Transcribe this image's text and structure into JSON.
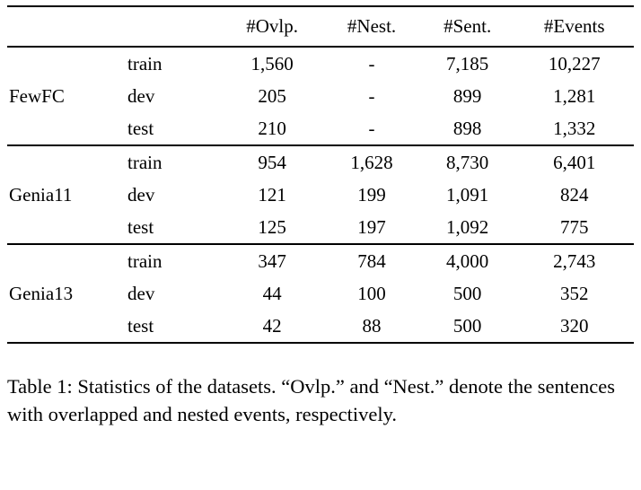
{
  "table": {
    "columns": [
      "#Ovlp.",
      "#Nest.",
      "#Sent.",
      "#Events"
    ],
    "groups": [
      {
        "dataset": "FewFC",
        "rows": [
          {
            "split": "train",
            "values": [
              "1,560",
              "-",
              "7,185",
              "10,227"
            ]
          },
          {
            "split": "dev",
            "values": [
              "205",
              "-",
              "899",
              "1,281"
            ]
          },
          {
            "split": "test",
            "values": [
              "210",
              "-",
              "898",
              "1,332"
            ]
          }
        ]
      },
      {
        "dataset": "Genia11",
        "rows": [
          {
            "split": "train",
            "values": [
              "954",
              "1,628",
              "8,730",
              "6,401"
            ]
          },
          {
            "split": "dev",
            "values": [
              "121",
              "199",
              "1,091",
              "824"
            ]
          },
          {
            "split": "test",
            "values": [
              "125",
              "197",
              "1,092",
              "775"
            ]
          }
        ]
      },
      {
        "dataset": "Genia13",
        "rows": [
          {
            "split": "train",
            "values": [
              "347",
              "784",
              "4,000",
              "2,743"
            ]
          },
          {
            "split": "dev",
            "values": [
              "44",
              "100",
              "500",
              "352"
            ]
          },
          {
            "split": "test",
            "values": [
              "42",
              "88",
              "500",
              "320"
            ]
          }
        ]
      }
    ]
  },
  "caption": "Table 1: Statistics of the datasets. “Ovlp.” and “Nest.” denote the sentences with overlapped and nested events, respectively."
}
